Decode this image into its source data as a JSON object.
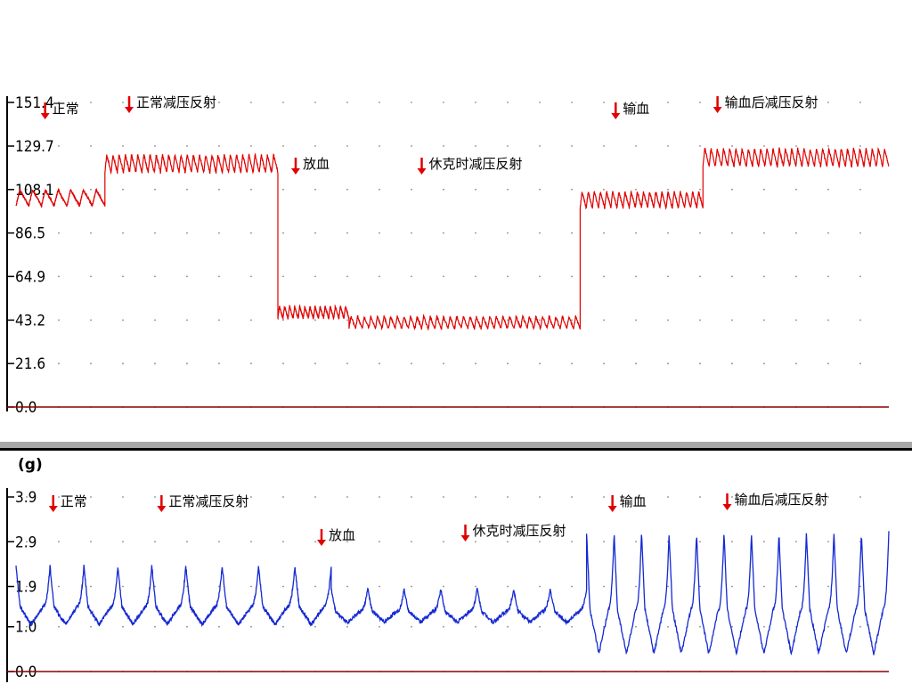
{
  "colors": {
    "pressure_trace": "#e00000",
    "tension_trace": "#1428d2",
    "baseline": "#8b0000",
    "marker": "#e00000",
    "separator": "#a8a8a8",
    "grid_dot": "#888888"
  },
  "chart_data": [
    {
      "type": "line",
      "title": "",
      "ylabel": "",
      "ylim": [
        0.0,
        151.4
      ],
      "y_ticks": [
        "0.0",
        "21.6",
        "43.2",
        "64.9",
        "86.5",
        "108.1",
        "129.7",
        "151.4"
      ],
      "grid": true,
      "series": [
        {
          "segments": [
            {
              "start": 0,
              "end": 5.5,
              "mean": 104,
              "amplitude": 8,
              "cycles": 7
            },
            {
              "start": 5.5,
              "end": 16.2,
              "mean": 121,
              "amplitude": 9,
              "cycles": 28
            },
            {
              "start": 16.2,
              "end": 20.6,
              "mean": 47,
              "amplitude": 6,
              "cycles": 14
            },
            {
              "start": 20.6,
              "end": 34.9,
              "mean": 42,
              "amplitude": 6,
              "cycles": 35
            },
            {
              "start": 34.9,
              "end": 42.5,
              "mean": 103,
              "amplitude": 8,
              "cycles": 20
            },
            {
              "start": 42.5,
              "end": 54,
              "mean": 124,
              "amplitude": 9,
              "cycles": 30
            }
          ]
        }
      ],
      "events": [
        {
          "x": 1.8,
          "label": "正常"
        },
        {
          "x": 7.0,
          "label": "正常减压反射"
        },
        {
          "x": 17.3,
          "label": "放血"
        },
        {
          "x": 25.1,
          "label": "休克时减压反射"
        },
        {
          "x": 37.1,
          "label": "输血"
        },
        {
          "x": 43.4,
          "label": "输血后减压反射"
        }
      ]
    },
    {
      "type": "line",
      "title": "",
      "ylabel": "(g)",
      "ylim": [
        0.0,
        3.9
      ],
      "y_ticks": [
        "0.0",
        "1.0",
        "1.9",
        "2.9",
        "3.9"
      ],
      "grid": true,
      "series": [
        {
          "segments": [
            {
              "start": 0,
              "end": 10.5,
              "baseline": 1.45,
              "peak": 2.35,
              "trough": 1.05,
              "cycles": 5
            },
            {
              "start": 10.5,
              "end": 19.5,
              "baseline": 1.45,
              "peak": 2.35,
              "trough": 1.05,
              "cycles": 4
            },
            {
              "start": 19.5,
              "end": 35.3,
              "baseline": 1.35,
              "peak": 1.85,
              "trough": 1.1,
              "cycles": 7
            },
            {
              "start": 35.3,
              "end": 54,
              "baseline": 1.4,
              "peak": 3.1,
              "trough": 0.4,
              "cycles": 11
            }
          ]
        }
      ],
      "events": [
        {
          "x": 2.3,
          "label": "正常"
        },
        {
          "x": 9.0,
          "label": "正常减压反射"
        },
        {
          "x": 18.9,
          "label": "放血"
        },
        {
          "x": 27.8,
          "label": "休克时减压反射"
        },
        {
          "x": 36.9,
          "label": "输血"
        },
        {
          "x": 44.0,
          "label": "输血后减压反射"
        }
      ]
    }
  ]
}
